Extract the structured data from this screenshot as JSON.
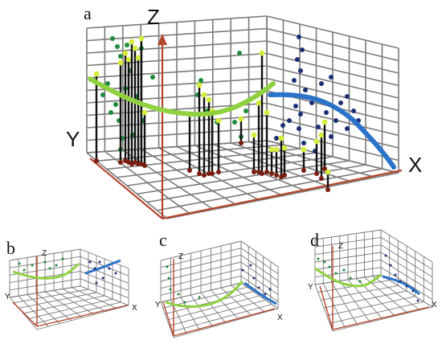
{
  "panels": [
    {
      "id": "a",
      "label": "a",
      "axes": {
        "x": "X",
        "y": "Y",
        "z": "Z"
      }
    },
    {
      "id": "b",
      "label": "b",
      "axes": {
        "x": "X",
        "y": "Y",
        "z": "Z"
      }
    },
    {
      "id": "c",
      "label": "c",
      "axes": {
        "x": "X",
        "y": "Y",
        "z": "Z"
      }
    },
    {
      "id": "d",
      "label": "d",
      "axes": {
        "x": "X",
        "y": "Y",
        "z": "Z"
      }
    }
  ],
  "colors": {
    "grid": "#7a7a7a",
    "axis": "#b5452a",
    "curve_green": "#8fd13f",
    "curve_blue": "#2a73c9",
    "points_green": "#1e8a3c",
    "points_navy": "#1c2f73",
    "stem": "#111111",
    "tip": "#d6ec3c",
    "base": "#7a1d10"
  }
}
